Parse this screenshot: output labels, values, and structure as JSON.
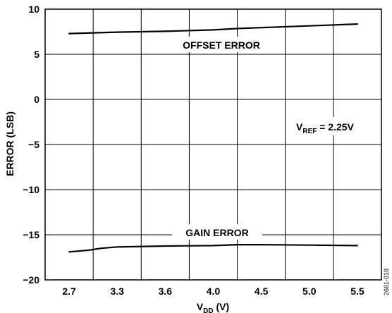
{
  "chart_data": {
    "type": "line",
    "xlabel": {
      "main": "V",
      "sub": "DD",
      "suffix": " (V)"
    },
    "ylabel": "ERROR (LSB)",
    "x_ticks": [
      "2.7",
      "3.3",
      "3.6",
      "4.0",
      "4.5",
      "5.0",
      "5.5"
    ],
    "y_ticks": [
      "10",
      "5",
      "0",
      "−5",
      "−10",
      "−15",
      "−20"
    ],
    "xlim": [
      2.7,
      5.5
    ],
    "ylim": [
      -20,
      10
    ],
    "grid": true,
    "series": [
      {
        "name": "OFFSET ERROR",
        "x": [
          2.7,
          3.3,
          3.6,
          4.0,
          4.25,
          4.5,
          5.0,
          5.5
        ],
        "y": [
          7.3,
          7.45,
          7.55,
          7.7,
          7.85,
          7.95,
          8.15,
          8.35
        ]
      },
      {
        "name": "GAIN ERROR",
        "x": [
          2.7,
          2.95,
          3.1,
          3.3,
          3.6,
          4.0,
          4.25,
          4.5,
          5.0,
          5.5
        ],
        "y": [
          -16.9,
          -16.7,
          -16.5,
          -16.35,
          -16.25,
          -16.2,
          -16.1,
          -16.1,
          -16.15,
          -16.2
        ]
      }
    ],
    "annotations": {
      "vref": {
        "main": "V",
        "sub": "REF",
        "suffix": " = 2.25V"
      }
    },
    "figure_code": "2661-018"
  }
}
